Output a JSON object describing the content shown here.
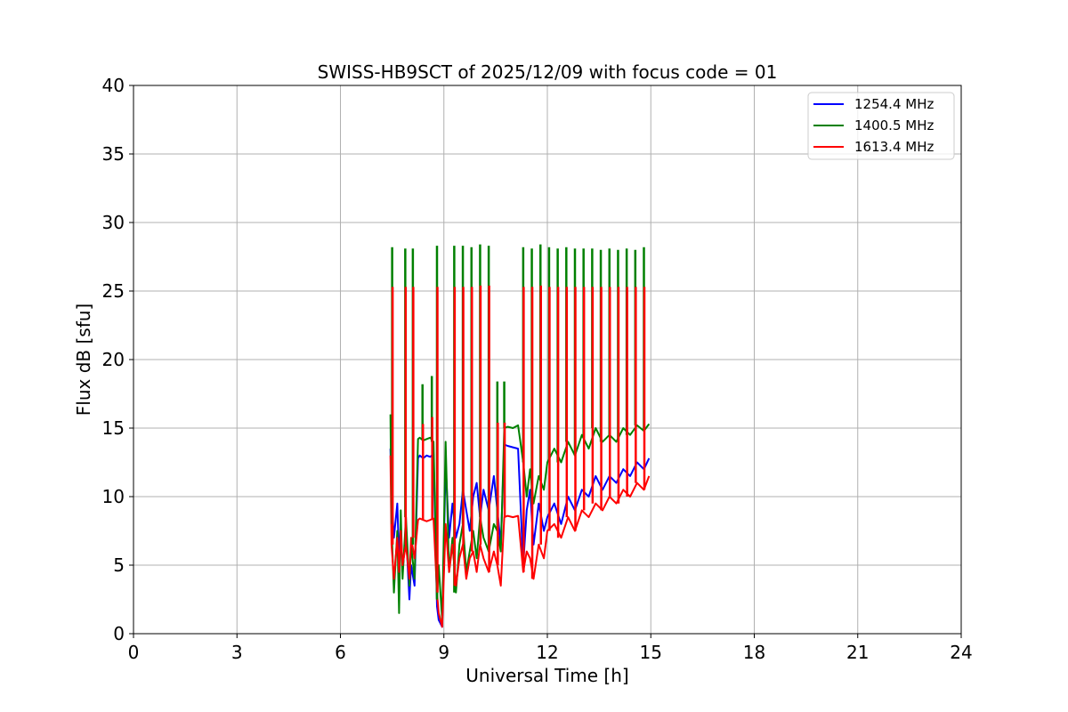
{
  "chart_data": {
    "type": "line",
    "title": "SWISS-HB9SCT of 2025/12/09 with focus code = 01",
    "xlabel": "Universal Time [h]",
    "ylabel": "Flux dB [sfu]",
    "xlim": [
      0,
      24
    ],
    "ylim": [
      0,
      40
    ],
    "xticks": [
      0,
      3,
      6,
      9,
      12,
      15,
      18,
      21,
      24
    ],
    "yticks": [
      0,
      5,
      10,
      15,
      20,
      25,
      30,
      35,
      40
    ],
    "grid": true,
    "legend_position": "top-right",
    "series": [
      {
        "name": "1254.4 MHz",
        "color": "#0000ff",
        "x": [
          7.45,
          7.48,
          7.55,
          7.65,
          7.7,
          7.75,
          7.8,
          7.9,
          8.0,
          8.05,
          8.15,
          8.25,
          8.3,
          8.4,
          8.5,
          8.6,
          8.7,
          8.8,
          8.85,
          8.95,
          9.05,
          9.15,
          9.25,
          9.35,
          9.45,
          9.55,
          9.65,
          9.75,
          9.85,
          9.95,
          10.05,
          10.15,
          10.3,
          10.45,
          10.55,
          10.65,
          10.75,
          10.85,
          11.0,
          11.15,
          11.3,
          11.4,
          11.5,
          11.6,
          11.75,
          11.9,
          12.0,
          12.2,
          12.4,
          12.6,
          12.8,
          13.0,
          13.2,
          13.4,
          13.6,
          13.8,
          14.0,
          14.2,
          14.4,
          14.6,
          14.8,
          14.95
        ],
        "values": [
          13.5,
          10.0,
          7.0,
          9.5,
          5.5,
          8.0,
          4.5,
          7.5,
          2.5,
          5.0,
          3.5,
          12.8,
          13.0,
          12.8,
          13.0,
          12.9,
          13.1,
          2.0,
          1.0,
          0.5,
          12.5,
          7.0,
          9.5,
          7.0,
          8.0,
          10.5,
          9.0,
          7.5,
          10.0,
          11.0,
          8.5,
          10.5,
          9.0,
          11.5,
          9.0,
          6.5,
          13.8,
          13.7,
          13.6,
          13.5,
          5.0,
          9.0,
          10.5,
          6.5,
          9.5,
          7.5,
          8.5,
          9.5,
          8.0,
          10.0,
          9.0,
          10.5,
          10.0,
          11.5,
          10.5,
          11.5,
          11.0,
          12.0,
          11.5,
          12.5,
          12.0,
          12.8
        ]
      },
      {
        "name": "1400.5 MHz",
        "color": "#008000",
        "x": [
          7.45,
          7.48,
          7.55,
          7.65,
          7.7,
          7.75,
          7.8,
          7.9,
          8.0,
          8.05,
          8.15,
          8.25,
          8.3,
          8.4,
          8.5,
          8.6,
          8.7,
          8.8,
          8.85,
          8.95,
          9.05,
          9.15,
          9.25,
          9.35,
          9.45,
          9.55,
          9.65,
          9.75,
          9.85,
          9.95,
          10.05,
          10.15,
          10.3,
          10.45,
          10.55,
          10.65,
          10.75,
          10.85,
          11.0,
          11.15,
          11.3,
          11.4,
          11.5,
          11.6,
          11.75,
          11.9,
          12.0,
          12.2,
          12.4,
          12.6,
          12.8,
          13.0,
          13.2,
          13.4,
          13.6,
          13.8,
          14.0,
          14.2,
          14.4,
          14.6,
          14.8,
          14.95
        ],
        "values": [
          16.0,
          8.0,
          3.0,
          7.5,
          1.5,
          9.0,
          4.0,
          8.5,
          3.5,
          6.5,
          4.0,
          14.2,
          14.3,
          14.1,
          14.2,
          14.3,
          14.0,
          2.5,
          5.0,
          1.0,
          14.0,
          4.5,
          7.0,
          3.0,
          6.5,
          8.0,
          4.5,
          6.0,
          7.5,
          5.5,
          8.5,
          7.0,
          6.0,
          8.0,
          7.5,
          6.0,
          15.0,
          15.1,
          15.0,
          15.2,
          12.5,
          10.0,
          12.0,
          9.5,
          11.5,
          10.5,
          12.5,
          13.5,
          12.5,
          14.0,
          13.0,
          14.5,
          13.5,
          15.0,
          14.0,
          14.5,
          14.0,
          15.0,
          14.5,
          15.2,
          14.8,
          15.3
        ]
      },
      {
        "name": "1613.4 MHz",
        "color": "#ff0000",
        "x": [
          7.45,
          7.48,
          7.55,
          7.65,
          7.7,
          7.75,
          7.8,
          7.9,
          8.0,
          8.05,
          8.15,
          8.25,
          8.3,
          8.4,
          8.5,
          8.6,
          8.7,
          8.8,
          8.85,
          8.95,
          9.05,
          9.15,
          9.25,
          9.35,
          9.45,
          9.55,
          9.65,
          9.75,
          9.85,
          9.95,
          10.05,
          10.15,
          10.3,
          10.45,
          10.55,
          10.65,
          10.75,
          10.85,
          11.0,
          11.15,
          11.3,
          11.4,
          11.5,
          11.6,
          11.75,
          11.9,
          12.0,
          12.2,
          12.4,
          12.6,
          12.8,
          13.0,
          13.2,
          13.4,
          13.6,
          13.8,
          14.0,
          14.2,
          14.4,
          14.6,
          14.8,
          14.95
        ],
        "values": [
          13.0,
          6.5,
          4.0,
          7.0,
          4.5,
          7.5,
          5.0,
          6.5,
          4.0,
          7.0,
          5.5,
          8.3,
          8.4,
          8.3,
          8.2,
          8.3,
          8.4,
          3.0,
          1.5,
          0.5,
          8.0,
          4.5,
          6.5,
          3.5,
          5.5,
          6.5,
          4.0,
          5.5,
          6.0,
          4.5,
          6.5,
          5.5,
          4.5,
          6.0,
          5.0,
          3.5,
          8.5,
          8.6,
          8.5,
          8.6,
          4.5,
          6.0,
          5.5,
          4.0,
          6.5,
          5.5,
          7.5,
          8.0,
          7.0,
          8.5,
          7.5,
          9.0,
          8.5,
          9.5,
          9.0,
          10.0,
          9.5,
          10.5,
          10.0,
          11.0,
          10.5,
          11.5
        ]
      }
    ],
    "spikes": [
      {
        "x": 7.5,
        "green": 28.2,
        "red": 25.3
      },
      {
        "x": 7.88,
        "green": 28.1,
        "red": 25.3
      },
      {
        "x": 8.1,
        "green": 28.1,
        "red": 25.3
      },
      {
        "x": 8.38,
        "green": 18.2,
        "red": 15.3
      },
      {
        "x": 8.65,
        "green": 18.8,
        "red": 15.8
      },
      {
        "x": 8.8,
        "green": 28.3,
        "red": 25.3
      },
      {
        "x": 9.3,
        "green": 28.3,
        "red": 25.3
      },
      {
        "x": 9.55,
        "green": 28.3,
        "red": 25.3
      },
      {
        "x": 9.8,
        "green": 28.2,
        "red": 25.3
      },
      {
        "x": 10.05,
        "green": 28.4,
        "red": 25.4
      },
      {
        "x": 10.3,
        "green": 28.3,
        "red": 25.4
      },
      {
        "x": 10.55,
        "green": 18.4,
        "red": 15.4
      },
      {
        "x": 10.75,
        "green": 18.4,
        "red": 15.4
      },
      {
        "x": 11.3,
        "green": 28.2,
        "red": 25.3
      },
      {
        "x": 11.55,
        "green": 28.1,
        "red": 25.3
      },
      {
        "x": 11.8,
        "green": 28.4,
        "red": 25.4
      },
      {
        "x": 12.05,
        "green": 28.2,
        "red": 25.3
      },
      {
        "x": 12.3,
        "green": 28.1,
        "red": 25.3
      },
      {
        "x": 12.55,
        "green": 28.2,
        "red": 25.3
      },
      {
        "x": 12.8,
        "green": 28.1,
        "red": 25.3
      },
      {
        "x": 13.05,
        "green": 28.1,
        "red": 25.3
      },
      {
        "x": 13.3,
        "green": 28.1,
        "red": 25.3
      },
      {
        "x": 13.55,
        "green": 28.0,
        "red": 25.3
      },
      {
        "x": 13.8,
        "green": 28.1,
        "red": 25.3
      },
      {
        "x": 14.05,
        "green": 28.0,
        "red": 25.3
      },
      {
        "x": 14.3,
        "green": 28.1,
        "red": 25.3
      },
      {
        "x": 14.55,
        "green": 28.0,
        "red": 25.3
      },
      {
        "x": 14.8,
        "green": 28.2,
        "red": 25.3
      }
    ]
  }
}
